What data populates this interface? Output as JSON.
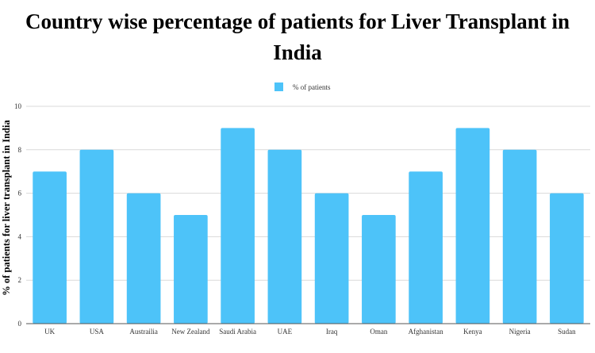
{
  "chart_data": {
    "type": "bar",
    "title": "Country wise percentage of patients for Liver Transplant in India",
    "xlabel": "",
    "ylabel": "% of patients for liver transplant in India",
    "categories": [
      "UK",
      "USA",
      "Austrailia",
      "New Zealand",
      "Saudi Arabia",
      "UAE",
      "Iraq",
      "Oman",
      "Afghanistan",
      "Kenya",
      "Nigeria",
      "Sudan"
    ],
    "series": [
      {
        "name": "% of patients",
        "values": [
          7,
          8,
          6,
          5,
          9,
          8,
          6,
          5,
          7,
          9,
          8,
          6
        ]
      }
    ],
    "ylim": [
      0,
      10
    ],
    "yticks": [
      0,
      2,
      4,
      6,
      8,
      10
    ],
    "grid": true,
    "legend": "top-center",
    "colors": {
      "bar": "#4dc3f9",
      "grid": "#d9d9d9",
      "axis": "#555555"
    }
  }
}
